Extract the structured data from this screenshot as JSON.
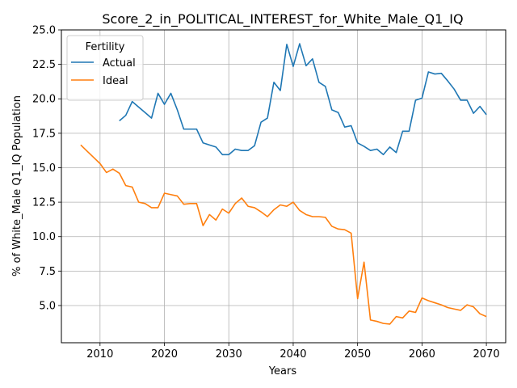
{
  "chart_data": {
    "type": "line",
    "title": "Score_2_in_POLITICAL_INTEREST_for_White_Male_Q1_IQ",
    "xlabel": "Years",
    "ylabel": "% of White_Male Q1_IQ Population",
    "xlim": [
      2004,
      2073
    ],
    "ylim": [
      2.3,
      25.0
    ],
    "xticks": [
      2010,
      2020,
      2030,
      2040,
      2050,
      2060,
      2070
    ],
    "yticks": [
      5.0,
      7.5,
      10.0,
      12.5,
      15.0,
      17.5,
      20.0,
      22.5,
      25.0
    ],
    "xtick_labels": [
      "2010",
      "2020",
      "2030",
      "2040",
      "2050",
      "2060",
      "2070"
    ],
    "ytick_labels": [
      "5.0",
      "7.5",
      "10.0",
      "12.5",
      "15.0",
      "17.5",
      "20.0",
      "22.5",
      "25.0"
    ],
    "grid": true,
    "legend": {
      "title": "Fertility",
      "placement": "top-left"
    },
    "series": [
      {
        "name": "Actual",
        "color": "#1f77b4",
        "x": [
          2013,
          2014,
          2015,
          2016,
          2017,
          2018,
          2019,
          2020,
          2021,
          2022,
          2023,
          2024,
          2025,
          2026,
          2027,
          2028,
          2029,
          2030,
          2031,
          2032,
          2033,
          2034,
          2035,
          2036,
          2037,
          2038,
          2039,
          2040,
          2041,
          2042,
          2043,
          2044,
          2045,
          2046,
          2047,
          2048,
          2049,
          2050,
          2051,
          2052,
          2053,
          2054,
          2055,
          2056,
          2057,
          2058,
          2059,
          2060,
          2061,
          2062,
          2063,
          2064,
          2065,
          2066,
          2067,
          2068,
          2069,
          2070
        ],
        "y": [
          18.4,
          18.8,
          19.8,
          19.4,
          19.0,
          18.6,
          20.4,
          19.6,
          20.4,
          19.2,
          17.8,
          17.8,
          17.8,
          16.8,
          16.65,
          16.5,
          15.95,
          15.95,
          16.35,
          16.25,
          16.25,
          16.6,
          18.3,
          18.6,
          21.2,
          20.6,
          23.95,
          22.35,
          24.0,
          22.4,
          22.9,
          21.2,
          20.9,
          19.2,
          19.0,
          17.95,
          18.05,
          16.8,
          16.55,
          16.25,
          16.35,
          15.95,
          16.5,
          16.1,
          17.65,
          17.65,
          19.9,
          20.05,
          21.95,
          21.8,
          21.85,
          21.3,
          20.7,
          19.9,
          19.9,
          18.95,
          19.45,
          18.85
        ]
      },
      {
        "name": "Ideal",
        "color": "#ff7f0e",
        "x": [
          2007,
          2008,
          2009,
          2010,
          2011,
          2012,
          2013,
          2014,
          2015,
          2016,
          2017,
          2018,
          2019,
          2020,
          2021,
          2022,
          2023,
          2024,
          2025,
          2026,
          2027,
          2028,
          2029,
          2030,
          2031,
          2032,
          2033,
          2034,
          2035,
          2036,
          2037,
          2038,
          2039,
          2040,
          2041,
          2042,
          2043,
          2044,
          2045,
          2046,
          2047,
          2048,
          2049,
          2050,
          2051,
          2052,
          2053,
          2054,
          2055,
          2056,
          2057,
          2058,
          2059,
          2060,
          2061,
          2062,
          2063,
          2064,
          2065,
          2066,
          2067,
          2068,
          2069,
          2070
        ],
        "y": [
          16.65,
          16.2,
          15.75,
          15.3,
          14.65,
          14.9,
          14.6,
          13.7,
          13.6,
          12.5,
          12.4,
          12.1,
          12.1,
          13.15,
          13.05,
          12.95,
          12.35,
          12.4,
          12.4,
          10.8,
          11.6,
          11.2,
          12.0,
          11.7,
          12.4,
          12.8,
          12.2,
          12.1,
          11.8,
          11.45,
          11.95,
          12.3,
          12.2,
          12.5,
          11.9,
          11.6,
          11.45,
          11.45,
          11.4,
          10.75,
          10.55,
          10.5,
          10.25,
          5.5,
          8.15,
          3.95,
          3.85,
          3.7,
          3.65,
          4.2,
          4.1,
          4.6,
          4.5,
          5.55,
          5.35,
          5.2,
          5.05,
          4.85,
          4.75,
          4.65,
          5.05,
          4.9,
          4.4,
          4.2
        ]
      }
    ]
  }
}
